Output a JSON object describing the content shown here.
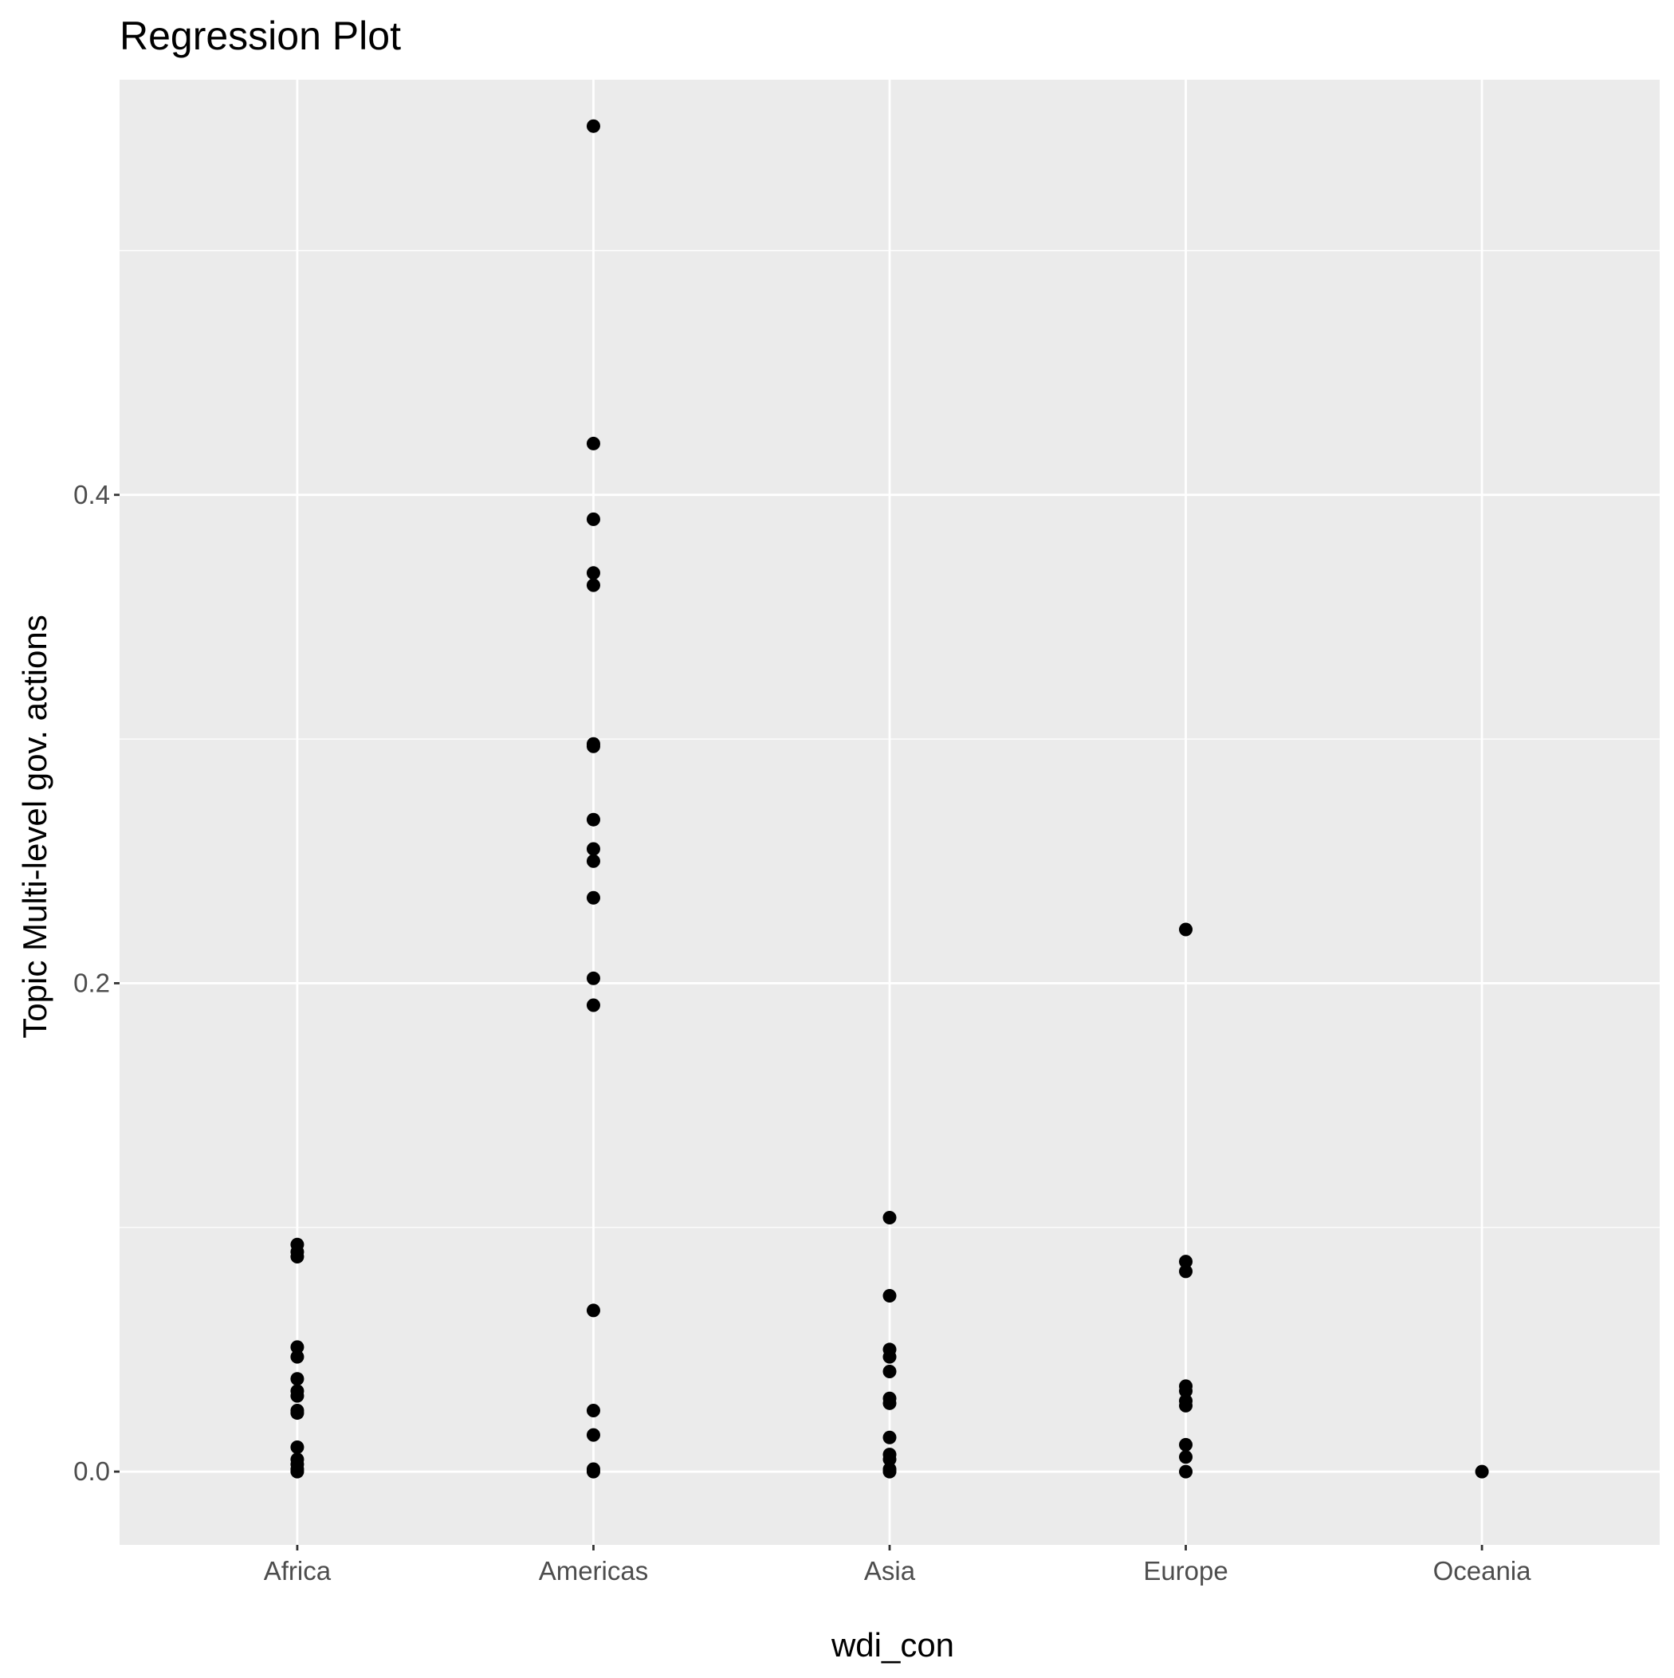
{
  "chart_data": {
    "type": "scatter",
    "title": "Regression Plot",
    "xlabel": "wdi_con",
    "ylabel": "Topic Multi-level gov. actions",
    "categories": [
      "Africa",
      "Americas",
      "Asia",
      "Europe",
      "Oceania"
    ],
    "y_ticks": [
      {
        "value": 0.0,
        "label": "0.0"
      },
      {
        "value": 0.2,
        "label": "0.2"
      },
      {
        "value": 0.4,
        "label": "0.4"
      }
    ],
    "ylim": [
      -0.03,
      0.57
    ],
    "grid": true,
    "panel_background": "#ebebeb",
    "grid_color": "#ffffff",
    "point_color": "#000000",
    "points": [
      {
        "x": "Africa",
        "y": 0.093
      },
      {
        "x": "Africa",
        "y": 0.09
      },
      {
        "x": "Africa",
        "y": 0.088
      },
      {
        "x": "Africa",
        "y": 0.051
      },
      {
        "x": "Africa",
        "y": 0.047
      },
      {
        "x": "Africa",
        "y": 0.038
      },
      {
        "x": "Africa",
        "y": 0.033
      },
      {
        "x": "Africa",
        "y": 0.031
      },
      {
        "x": "Africa",
        "y": 0.025
      },
      {
        "x": "Africa",
        "y": 0.024
      },
      {
        "x": "Africa",
        "y": 0.01
      },
      {
        "x": "Africa",
        "y": 0.005
      },
      {
        "x": "Africa",
        "y": 0.003
      },
      {
        "x": "Africa",
        "y": 0.001
      },
      {
        "x": "Africa",
        "y": 0.0
      },
      {
        "x": "Americas",
        "y": 0.551
      },
      {
        "x": "Americas",
        "y": 0.421
      },
      {
        "x": "Americas",
        "y": 0.39
      },
      {
        "x": "Americas",
        "y": 0.368
      },
      {
        "x": "Americas",
        "y": 0.363
      },
      {
        "x": "Americas",
        "y": 0.298
      },
      {
        "x": "Americas",
        "y": 0.297
      },
      {
        "x": "Americas",
        "y": 0.267
      },
      {
        "x": "Americas",
        "y": 0.255
      },
      {
        "x": "Americas",
        "y": 0.25
      },
      {
        "x": "Americas",
        "y": 0.235
      },
      {
        "x": "Americas",
        "y": 0.202
      },
      {
        "x": "Americas",
        "y": 0.191
      },
      {
        "x": "Americas",
        "y": 0.066
      },
      {
        "x": "Americas",
        "y": 0.025
      },
      {
        "x": "Americas",
        "y": 0.015
      },
      {
        "x": "Americas",
        "y": 0.001
      },
      {
        "x": "Americas",
        "y": 0.0
      },
      {
        "x": "Asia",
        "y": 0.104
      },
      {
        "x": "Asia",
        "y": 0.072
      },
      {
        "x": "Asia",
        "y": 0.05
      },
      {
        "x": "Asia",
        "y": 0.047
      },
      {
        "x": "Asia",
        "y": 0.041
      },
      {
        "x": "Asia",
        "y": 0.03
      },
      {
        "x": "Asia",
        "y": 0.028
      },
      {
        "x": "Asia",
        "y": 0.014
      },
      {
        "x": "Asia",
        "y": 0.007
      },
      {
        "x": "Asia",
        "y": 0.005
      },
      {
        "x": "Asia",
        "y": 0.001
      },
      {
        "x": "Asia",
        "y": 0.0
      },
      {
        "x": "Europe",
        "y": 0.222
      },
      {
        "x": "Europe",
        "y": 0.086
      },
      {
        "x": "Europe",
        "y": 0.082
      },
      {
        "x": "Europe",
        "y": 0.035
      },
      {
        "x": "Europe",
        "y": 0.033
      },
      {
        "x": "Europe",
        "y": 0.029
      },
      {
        "x": "Europe",
        "y": 0.027
      },
      {
        "x": "Europe",
        "y": 0.011
      },
      {
        "x": "Europe",
        "y": 0.006
      },
      {
        "x": "Europe",
        "y": 0.0
      },
      {
        "x": "Oceania",
        "y": 0.0
      }
    ]
  }
}
